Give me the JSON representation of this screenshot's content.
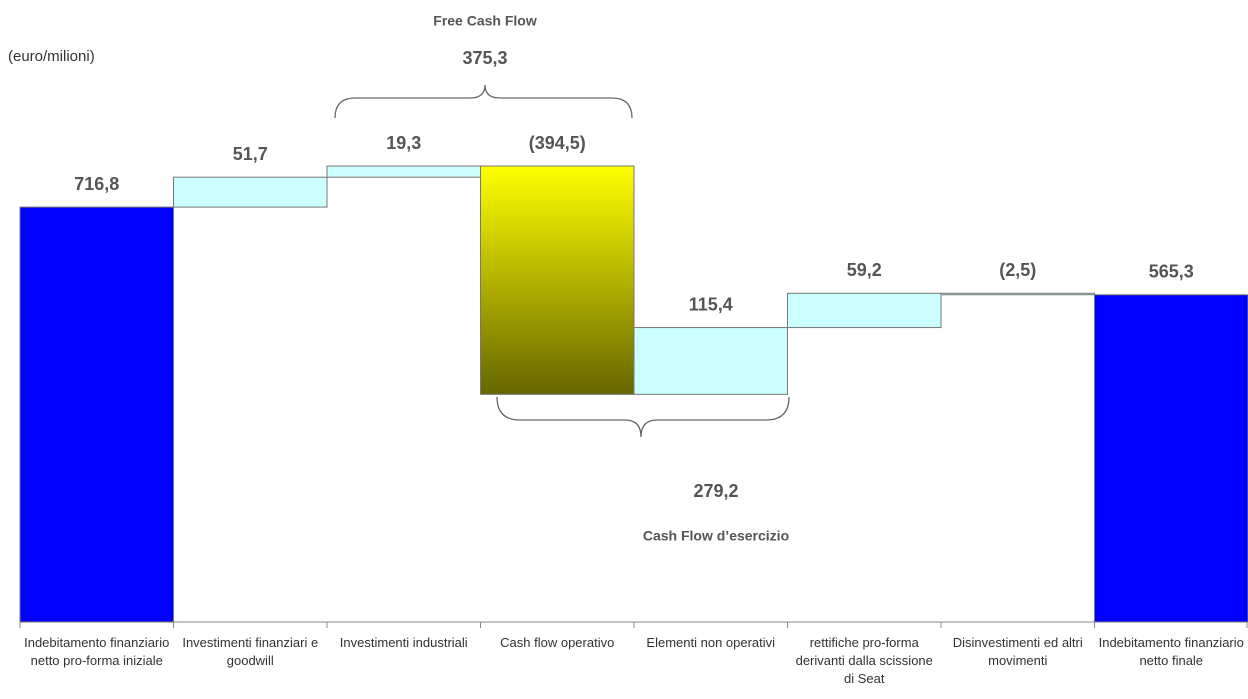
{
  "chart_data": {
    "type": "waterfall",
    "unit_label": "(euro/milioni)",
    "categories": [
      "Indebitamento finanziario netto pro-forma iniziale",
      "Investimenti finanziari e goodwill",
      "Investimenti industriali",
      "Cash flow operativo",
      "Elementi non operativi",
      "rettifiche pro-forma derivanti dalla scissione di Seat",
      "Disinvestimenti ed altri movimenti",
      "Indebitamento finanziario netto finale"
    ],
    "values": [
      716.8,
      51.7,
      19.3,
      -394.5,
      115.4,
      59.2,
      -2.5,
      565.3
    ],
    "value_labels": [
      "716,8",
      "51,7",
      "19,3",
      "(394,5)",
      "115,4",
      "59,2",
      "(2,5)",
      "565,3"
    ],
    "kinds": [
      "total",
      "delta",
      "delta",
      "delta",
      "delta",
      "delta",
      "delta",
      "total"
    ],
    "colors": [
      "#0000ff",
      "#ccffff",
      "#ccffff",
      "#ffff00",
      "#ccffff",
      "#ccffff",
      "#ccffff",
      "#0000ff"
    ],
    "gradient_colors": [
      null,
      null,
      null,
      "#666600",
      null,
      null,
      null,
      null
    ],
    "annotations": [
      {
        "title": "Free Cash Flow",
        "value_label": "375,3"
      },
      {
        "title": "Cash Flow d’esercizio",
        "value_label": "279,2"
      }
    ]
  }
}
